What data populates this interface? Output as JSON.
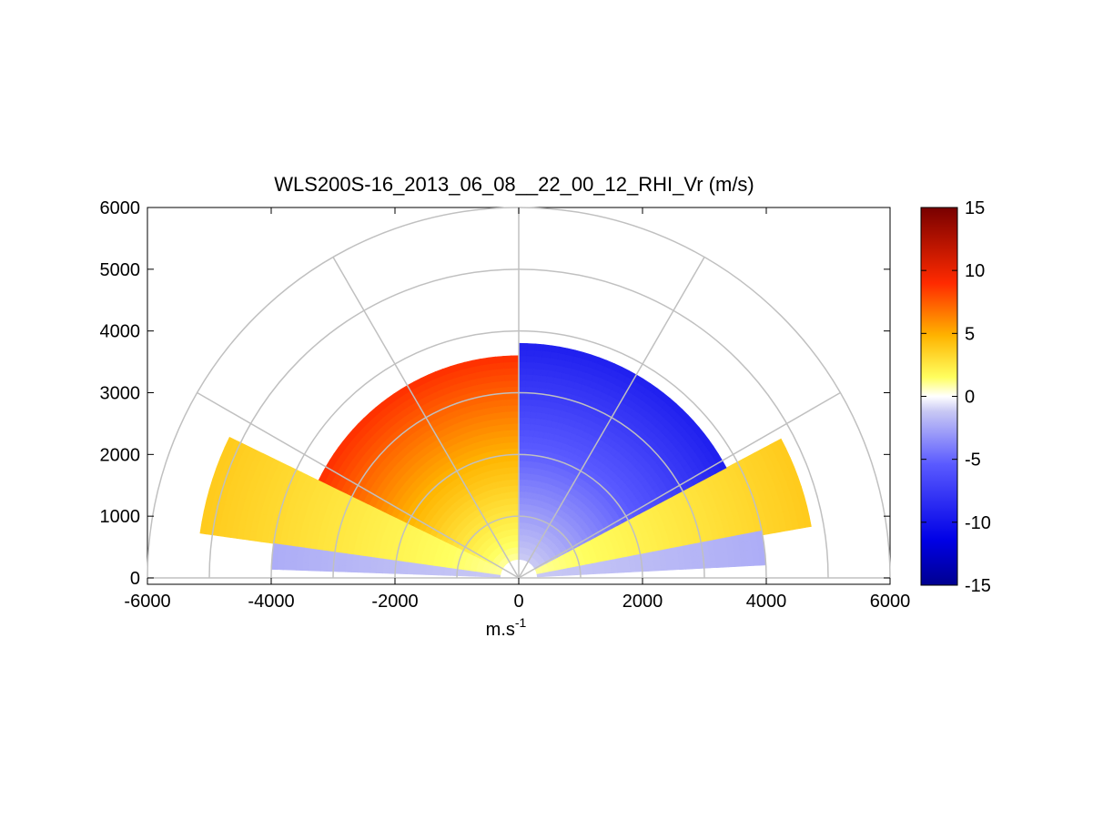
{
  "chart_data": {
    "type": "heatmap",
    "projection": "polar RHI (half-disc, range rings and elevation spokes)",
    "title": "WLS200S-16_2013_06_08__22_00_12_RHI_Vr (m/s)",
    "xlabel": "m.s",
    "xlabel_superscript": "-1",
    "ylabel": "",
    "xlim": [
      -6000,
      6000
    ],
    "ylim": [
      0,
      6000
    ],
    "xticks": [
      "-6000",
      "-4000",
      "-2000",
      "0",
      "2000",
      "4000",
      "6000"
    ],
    "yticks": [
      "0",
      "1000",
      "2000",
      "3000",
      "4000",
      "5000",
      "6000"
    ],
    "range_rings_m": [
      1000,
      2000,
      3000,
      4000,
      5000,
      6000
    ],
    "spokes_deg": [
      0,
      30,
      60,
      90,
      120,
      150,
      180
    ],
    "grid": true,
    "colorbar": {
      "range": [
        -15,
        15
      ],
      "ticks": [
        "15",
        "10",
        "5",
        "0",
        "-5",
        "-10",
        "-15"
      ],
      "colormap": "blue-white-yellow-red (diverging)"
    },
    "sectors": [
      {
        "from_deg": 10,
        "to_deg": 28,
        "r_min": 300,
        "r_max": 4800,
        "vr_near": 1,
        "vr_far": 4
      },
      {
        "from_deg": 28,
        "to_deg": 90,
        "r_min": 300,
        "r_max": 3800,
        "vr_near": -1,
        "vr_far": -9
      },
      {
        "from_deg": 90,
        "to_deg": 154,
        "r_min": 300,
        "r_max": 3600,
        "vr_near": 1,
        "vr_far": 9
      },
      {
        "from_deg": 154,
        "to_deg": 172,
        "r_min": 300,
        "r_max": 5200,
        "vr_near": 1,
        "vr_far": 4
      },
      {
        "from_deg": 3,
        "to_deg": 10,
        "r_min": 300,
        "r_max": 4000,
        "vr_near": -1,
        "vr_far": -2
      },
      {
        "from_deg": 172,
        "to_deg": 178,
        "r_min": 300,
        "r_max": 4000,
        "vr_near": -1,
        "vr_far": -2
      }
    ]
  }
}
